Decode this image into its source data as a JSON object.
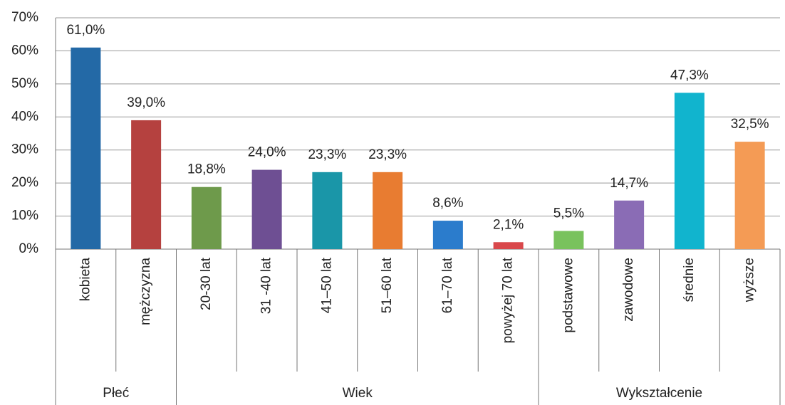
{
  "chart_data": {
    "type": "bar",
    "groups": [
      {
        "name": "Płeć",
        "categories": [
          "kobieta",
          "mężczyzna"
        ],
        "values": [
          61.0,
          39.0
        ],
        "value_labels": [
          "61,0%",
          "39,0%"
        ],
        "colors": [
          "#2369a6",
          "#b5413f"
        ]
      },
      {
        "name": "Wiek",
        "categories": [
          "20-30 lat",
          "31 -40 lat",
          "41–50 lat",
          "51–60 lat",
          "61–70 lat",
          "powyżej 70 lat"
        ],
        "values": [
          18.8,
          24.0,
          23.3,
          23.3,
          8.6,
          2.1
        ],
        "value_labels": [
          "18,8%",
          "24,0%",
          "23,3%",
          "23,3%",
          "8,6%",
          "2,1%"
        ],
        "colors": [
          "#6e9a4b",
          "#6e4f93",
          "#1a96a8",
          "#e87c31",
          "#2b7ccc",
          "#d9484b"
        ]
      },
      {
        "name": "Wykształcenie",
        "categories": [
          "podstawowe",
          "zawodowe",
          "średnie",
          "wyższe"
        ],
        "values": [
          5.5,
          14.7,
          47.3,
          32.5
        ],
        "value_labels": [
          "5,5%",
          "14,7%",
          "47,3%",
          "32,5%"
        ],
        "colors": [
          "#79c25d",
          "#8a6cb5",
          "#11b4ce",
          "#f49b55"
        ]
      }
    ],
    "ylim": [
      0,
      70
    ],
    "yticks": [
      {
        "value": 0,
        "label": "0%"
      },
      {
        "value": 10,
        "label": "10%"
      },
      {
        "value": 20,
        "label": "20%"
      },
      {
        "value": 30,
        "label": "30%"
      },
      {
        "value": 40,
        "label": "40%"
      },
      {
        "value": 50,
        "label": "50%"
      },
      {
        "value": 60,
        "label": "60%"
      },
      {
        "value": 70,
        "label": "70%"
      }
    ],
    "grid": true
  }
}
